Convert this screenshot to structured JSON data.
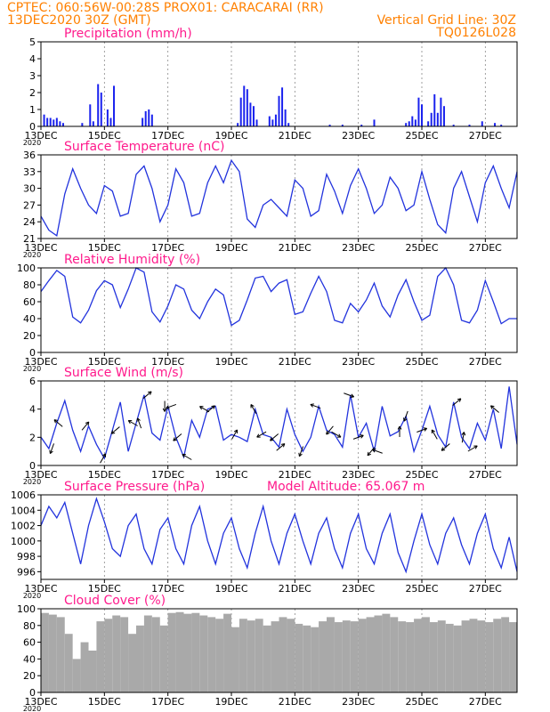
{
  "header": {
    "line1_left": "CPTEC:   060:56W-00:28S   PROX01: CARACARAI (RR)",
    "line2_left": "13DEC2020 30Z (GMT)",
    "line2_right": "Vertical Grid Line: 30Z",
    "line3_right": "TQ0126L028"
  },
  "colors": {
    "series": "#2233dd",
    "bars": "#1a22ee",
    "cloud": "#a9a9a9",
    "title": "#ff1a8c",
    "header": "#ff8000",
    "arrows": "#000000"
  },
  "x_axis": {
    "range_days": [
      0,
      15
    ],
    "tick_labels": [
      "13DEC",
      "15DEC",
      "17DEC",
      "19DEC",
      "21DEC",
      "23DEC",
      "25DEC",
      "27DEC"
    ],
    "tick_days": [
      0,
      2,
      4,
      6,
      8,
      10,
      12,
      14
    ],
    "year_label": "2020"
  },
  "chart_data": [
    {
      "id": "precip",
      "type": "bar",
      "title": "Precipitation  (mm/h)",
      "ylim": [
        0,
        5
      ],
      "yticks": [
        0,
        1,
        2,
        3,
        4,
        5
      ],
      "x_days": [
        0.1,
        0.2,
        0.3,
        0.4,
        0.5,
        0.6,
        0.7,
        1.3,
        1.55,
        1.65,
        1.8,
        1.9,
        2.1,
        2.2,
        2.3,
        3.2,
        3.3,
        3.4,
        3.5,
        6.2,
        6.3,
        6.4,
        6.5,
        6.6,
        6.7,
        6.8,
        7.2,
        7.3,
        7.4,
        7.5,
        7.6,
        7.7,
        7.8,
        9.1,
        9.5,
        10.1,
        10.5,
        11.5,
        11.6,
        11.7,
        11.8,
        11.9,
        12.0,
        12.2,
        12.3,
        12.4,
        12.5,
        12.6,
        12.7,
        13.0,
        13.5,
        13.9,
        14.3,
        14.5
      ],
      "values": [
        0.7,
        0.5,
        0.5,
        0.4,
        0.5,
        0.3,
        0.2,
        0.2,
        1.3,
        0.3,
        2.5,
        2.0,
        1.0,
        0.5,
        2.4,
        0.5,
        0.9,
        1.0,
        0.7,
        0.2,
        1.7,
        2.4,
        2.2,
        1.4,
        1.2,
        0.4,
        0.6,
        0.4,
        0.7,
        1.8,
        2.3,
        1.0,
        0.2,
        0.1,
        0.1,
        0.1,
        0.4,
        0.2,
        0.3,
        0.6,
        0.4,
        1.7,
        1.3,
        0.3,
        0.8,
        1.9,
        0.8,
        1.7,
        1.2,
        0.1,
        0.1,
        0.3,
        0.2,
        0.1
      ]
    },
    {
      "id": "temp",
      "type": "line",
      "title": "Surface Temperature (nC)",
      "ylim": [
        21,
        36
      ],
      "yticks": [
        21,
        24,
        27,
        30,
        33,
        36
      ],
      "x_days": [
        0,
        0.25,
        0.5,
        0.75,
        1.0,
        1.25,
        1.5,
        1.75,
        2.0,
        2.25,
        2.5,
        2.75,
        3.0,
        3.25,
        3.5,
        3.75,
        4.0,
        4.25,
        4.5,
        4.75,
        5.0,
        5.25,
        5.5,
        5.75,
        6.0,
        6.25,
        6.5,
        6.75,
        7.0,
        7.25,
        7.5,
        7.75,
        8.0,
        8.25,
        8.5,
        8.75,
        9.0,
        9.25,
        9.5,
        9.75,
        10.0,
        10.25,
        10.5,
        10.75,
        11.0,
        11.25,
        11.5,
        11.75,
        12.0,
        12.25,
        12.5,
        12.75,
        13.0,
        13.25,
        13.5,
        13.75,
        14.0,
        14.25,
        14.5,
        14.75,
        15.0
      ],
      "values": [
        25,
        22.5,
        21.5,
        29,
        33.5,
        30,
        27,
        25.5,
        30.5,
        29.5,
        25,
        25.5,
        32.5,
        34,
        30,
        24,
        27,
        33.5,
        31,
        25,
        25.5,
        31,
        34,
        31,
        35,
        33,
        24.5,
        23,
        27,
        28,
        26.5,
        25,
        31.5,
        30,
        25,
        26,
        32.5,
        29.5,
        25.5,
        30.5,
        33.5,
        30,
        25.5,
        27,
        32,
        30,
        26,
        27,
        33,
        28,
        23.5,
        22,
        30,
        33,
        28.5,
        24,
        31,
        34,
        30,
        26.5,
        33
      ]
    },
    {
      "id": "rh",
      "type": "line",
      "title": "Relative Humidity  (%)",
      "ylim": [
        0,
        100
      ],
      "yticks": [
        0,
        20,
        40,
        60,
        80,
        100
      ],
      "x_days": [
        0,
        0.25,
        0.5,
        0.75,
        1.0,
        1.25,
        1.5,
        1.75,
        2.0,
        2.25,
        2.5,
        2.75,
        3.0,
        3.25,
        3.5,
        3.75,
        4.0,
        4.25,
        4.5,
        4.75,
        5.0,
        5.25,
        5.5,
        5.75,
        6.0,
        6.25,
        6.5,
        6.75,
        7.0,
        7.25,
        7.5,
        7.75,
        8.0,
        8.25,
        8.5,
        8.75,
        9.0,
        9.25,
        9.5,
        9.75,
        10.0,
        10.25,
        10.5,
        10.75,
        11.0,
        11.25,
        11.5,
        11.75,
        12.0,
        12.25,
        12.5,
        12.75,
        13.0,
        13.25,
        13.5,
        13.75,
        14.0,
        14.25,
        14.5,
        14.75,
        15.0
      ],
      "values": [
        72,
        85,
        97,
        90,
        42,
        35,
        50,
        73,
        85,
        80,
        53,
        75,
        100,
        95,
        48,
        36,
        55,
        80,
        75,
        50,
        40,
        60,
        75,
        68,
        32,
        38,
        62,
        88,
        90,
        72,
        82,
        86,
        45,
        48,
        70,
        90,
        72,
        38,
        35,
        58,
        48,
        62,
        82,
        55,
        42,
        68,
        86,
        60,
        38,
        44,
        90,
        100,
        80,
        38,
        35,
        50,
        85,
        60,
        34,
        40,
        40
      ]
    },
    {
      "id": "wind",
      "type": "line",
      "title": "Surface Wind  (m/s)",
      "ylim": [
        0,
        6
      ],
      "yticks": [
        0,
        2,
        4,
        6
      ],
      "x_days": [
        0,
        0.25,
        0.5,
        0.75,
        1.0,
        1.25,
        1.5,
        1.75,
        2.0,
        2.25,
        2.5,
        2.75,
        3.0,
        3.25,
        3.5,
        3.75,
        4.0,
        4.25,
        4.5,
        4.75,
        5.0,
        5.25,
        5.5,
        5.75,
        6.0,
        6.25,
        6.5,
        6.75,
        7.0,
        7.25,
        7.5,
        7.75,
        8.0,
        8.25,
        8.5,
        8.75,
        9.0,
        9.25,
        9.5,
        9.75,
        10.0,
        10.25,
        10.5,
        10.75,
        11.0,
        11.25,
        11.5,
        11.75,
        12.0,
        12.25,
        12.5,
        12.75,
        13.0,
        13.25,
        13.5,
        13.75,
        14.0,
        14.25,
        14.5,
        14.75,
        15.0
      ],
      "values": [
        2.0,
        1.2,
        3.0,
        4.6,
        2.5,
        1.0,
        2.8,
        1.5,
        0.5,
        2.5,
        4.5,
        1.0,
        3.0,
        5.0,
        2.3,
        1.8,
        4.2,
        2.0,
        0.6,
        3.2,
        2.0,
        4.0,
        4.2,
        1.8,
        2.2,
        2.0,
        1.7,
        4.0,
        2.2,
        2.0,
        1.3,
        4.0,
        2.2,
        1.0,
        2.0,
        4.2,
        2.5,
        2.2,
        1.3,
        5.0,
        2.0,
        3.0,
        1.0,
        4.2,
        2.1,
        2.4,
        3.5,
        1.0,
        2.5,
        4.2,
        2.2,
        1.3,
        4.5,
        2.0,
        1.2,
        3.0,
        1.8,
        4.0,
        1.2,
        5.6,
        1.5
      ]
    },
    {
      "id": "pres",
      "type": "line",
      "title": "Surface Pressure (hPa)",
      "subtitle": "Model Altitude: 65.067 m",
      "ylim": [
        995,
        1006
      ],
      "yticks": [
        996,
        998,
        1000,
        1002,
        1004,
        1006
      ],
      "x_days": [
        0,
        0.25,
        0.5,
        0.75,
        1.0,
        1.25,
        1.5,
        1.75,
        2.0,
        2.25,
        2.5,
        2.75,
        3.0,
        3.25,
        3.5,
        3.75,
        4.0,
        4.25,
        4.5,
        4.75,
        5.0,
        5.25,
        5.5,
        5.75,
        6.0,
        6.25,
        6.5,
        6.75,
        7.0,
        7.25,
        7.5,
        7.75,
        8.0,
        8.25,
        8.5,
        8.75,
        9.0,
        9.25,
        9.5,
        9.75,
        10.0,
        10.25,
        10.5,
        10.75,
        11.0,
        11.25,
        11.5,
        11.75,
        12.0,
        12.25,
        12.5,
        12.75,
        13.0,
        13.25,
        13.5,
        13.75,
        14.0,
        14.25,
        14.5,
        14.75,
        15.0
      ],
      "values": [
        1002,
        1004.5,
        1003,
        1005,
        1001,
        997,
        1002,
        1005.5,
        1002.5,
        999,
        998,
        1002,
        1003.5,
        999,
        997,
        1001.5,
        1003,
        999,
        997,
        1002,
        1004.5,
        1000,
        997,
        1001,
        1003,
        999,
        996.5,
        1001,
        1004.5,
        1000,
        997,
        1001,
        1003.5,
        1000,
        997,
        1001,
        1003,
        999,
        996.5,
        1001,
        1003.5,
        999,
        997,
        1001,
        1003.5,
        998.5,
        996,
        1000,
        1003.5,
        999.5,
        997,
        1001,
        1003,
        999.5,
        997,
        1001,
        1003.5,
        999,
        996.5,
        1000.5,
        996
      ]
    },
    {
      "id": "cloud",
      "type": "bar",
      "title": "Cloud Cover  (%)",
      "ylim": [
        0,
        100
      ],
      "yticks": [
        0,
        20,
        40,
        60,
        80,
        100
      ],
      "x_days": [
        0,
        0.25,
        0.5,
        0.75,
        1.0,
        1.25,
        1.5,
        1.75,
        2.0,
        2.25,
        2.5,
        2.75,
        3.0,
        3.25,
        3.5,
        3.75,
        4.0,
        4.25,
        4.5,
        4.75,
        5.0,
        5.25,
        5.5,
        5.75,
        6.0,
        6.25,
        6.5,
        6.75,
        7.0,
        7.25,
        7.5,
        7.75,
        8.0,
        8.25,
        8.5,
        8.75,
        9.0,
        9.25,
        9.5,
        9.75,
        10.0,
        10.25,
        10.5,
        10.75,
        11.0,
        11.25,
        11.5,
        11.75,
        12.0,
        12.25,
        12.5,
        12.75,
        13.0,
        13.25,
        13.5,
        13.75,
        14.0,
        14.25,
        14.5,
        14.75
      ],
      "values": [
        95,
        93,
        90,
        70,
        40,
        60,
        50,
        85,
        88,
        92,
        90,
        70,
        80,
        92,
        90,
        80,
        95,
        96,
        94,
        95,
        92,
        90,
        88,
        94,
        78,
        88,
        86,
        88,
        80,
        85,
        90,
        88,
        82,
        80,
        78,
        85,
        90,
        84,
        86,
        85,
        88,
        90,
        92,
        94,
        90,
        85,
        84,
        88,
        90,
        84,
        86,
        82,
        80,
        86,
        88,
        86,
        84,
        88,
        90,
        84
      ]
    }
  ],
  "wind_vectors": {
    "title": "wind direction arrows (to-direction angle in degrees, 0=east, 90=north)",
    "x_days": [
      0.35,
      0.55,
      1.4,
      1.95,
      2.35,
      2.9,
      3.1,
      3.35,
      3.9,
      4.1,
      4.3,
      4.6,
      5.15,
      5.35,
      6.1,
      6.7,
      6.95,
      7.35,
      7.55,
      8.2,
      8.65,
      9.1,
      9.3,
      9.7,
      10.0,
      10.4,
      10.6,
      11.3,
      11.5,
      12.0,
      12.4,
      12.75,
      13.1,
      13.3,
      13.6,
      14.3
    ],
    "angles": [
      250,
      140,
      50,
      60,
      220,
      150,
      110,
      40,
      270,
      200,
      220,
      150,
      150,
      40,
      60,
      120,
      210,
      220,
      40,
      250,
      160,
      230,
      330,
      340,
      20,
      230,
      160,
      90,
      250,
      20,
      120,
      220,
      40,
      80,
      30,
      140
    ]
  }
}
